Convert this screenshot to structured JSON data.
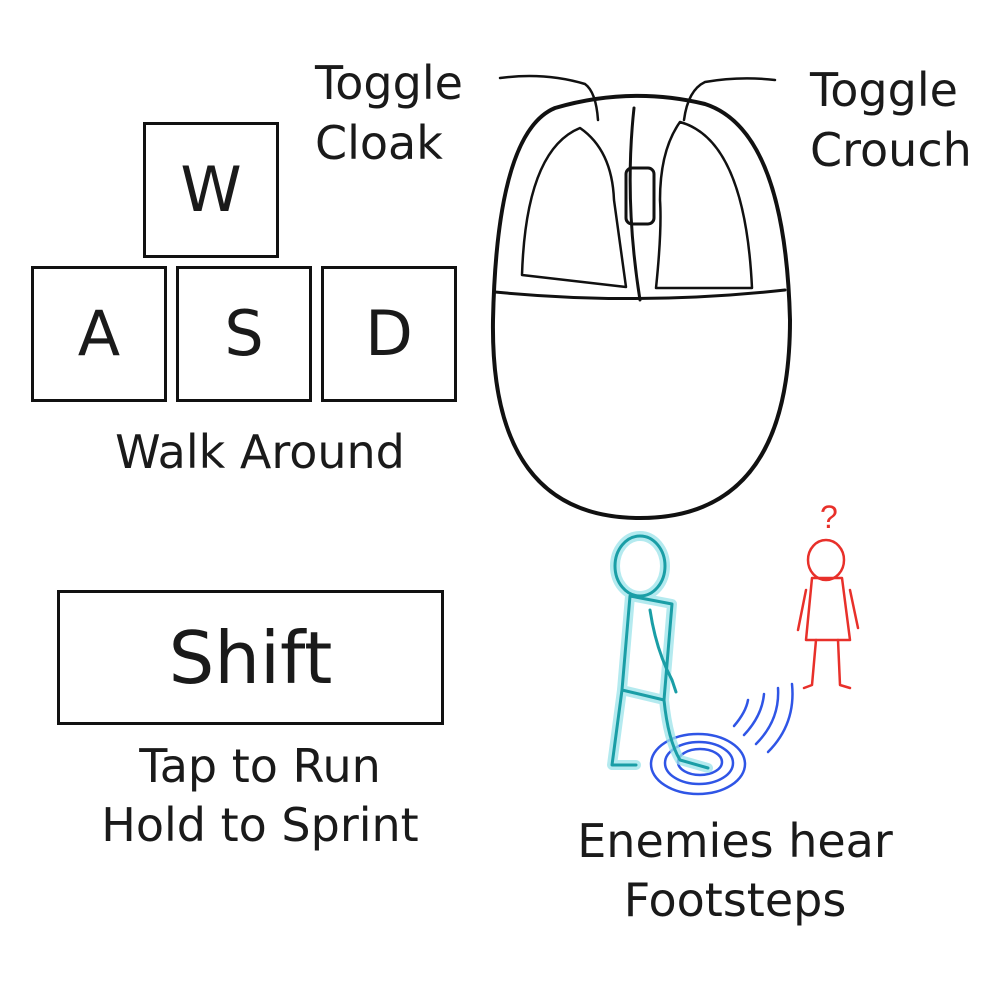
{
  "keys": {
    "w": "W",
    "a": "A",
    "s": "S",
    "d": "D",
    "shift": "Shift"
  },
  "captions": {
    "walk": "Walk Around",
    "run_line1": "Tap to Run",
    "run_line2": "Hold to Sprint",
    "footsteps_line1": "Enemies hear",
    "footsteps_line2": "Footsteps"
  },
  "mouse": {
    "left_label": [
      "Toggle",
      "Cloak"
    ],
    "right_label": [
      "Toggle",
      "Crouch"
    ]
  },
  "enemy_glyph": "?",
  "colors": {
    "outline": "#111111",
    "player": "#1a9ea6",
    "player_glow": "#9be3ea",
    "enemy": "#e8302a",
    "sound": "#2f55e6"
  }
}
